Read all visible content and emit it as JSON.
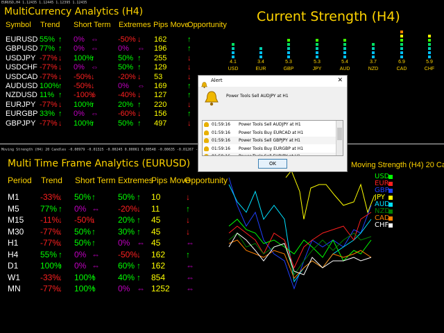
{
  "top_info": "EURUSD,H4  1.12435  1.12445  1.12395  1.12435",
  "mc": {
    "title": "MultiCurrency Analytics (H4)",
    "headers": [
      "Symbol",
      "Trend",
      "Short Term",
      "Extremes",
      "Pips Move",
      "Opportunity"
    ],
    "rows": [
      {
        "symbol": "EURUSD",
        "trend": "55%",
        "trend_arrow": "↑",
        "short": "0%",
        "short_arrow": "⇔",
        "ext": "-50%",
        "ext_arrow": "↓",
        "pips": "162",
        "opp": "↑",
        "c": [
          "g",
          "g",
          "m",
          "m",
          "r",
          "r",
          "y",
          "g"
        ]
      },
      {
        "symbol": "GBPUSD",
        "trend": "77%",
        "trend_arrow": "↑",
        "short": "0%",
        "short_arrow": "⇔",
        "ext": "0%",
        "ext_arrow": "⇔",
        "pips": "196",
        "opp": "↑",
        "c": [
          "g",
          "g",
          "m",
          "m",
          "m",
          "m",
          "y",
          "g"
        ]
      },
      {
        "symbol": "USDJPY",
        "trend": "-77%",
        "trend_arrow": "↓",
        "short": "100%",
        "short_arrow": "↑",
        "ext": "50%",
        "ext_arrow": "↑",
        "pips": "255",
        "opp": "↓",
        "c": [
          "r",
          "r",
          "g",
          "g",
          "g",
          "g",
          "y",
          "r"
        ]
      },
      {
        "symbol": "USDCHF",
        "trend": "-77%",
        "trend_arrow": "↓",
        "short": "0%",
        "short_arrow": "⇔",
        "ext": "50%",
        "ext_arrow": "↑",
        "pips": "129",
        "opp": "↓",
        "c": [
          "r",
          "r",
          "m",
          "m",
          "g",
          "g",
          "y",
          "r"
        ]
      },
      {
        "symbol": "USDCAD",
        "trend": "-77%",
        "trend_arrow": "↓",
        "short": "-50%",
        "short_arrow": "↓",
        "ext": "-20%",
        "ext_arrow": "↓",
        "pips": "53",
        "opp": "↓",
        "c": [
          "r",
          "r",
          "r",
          "r",
          "r",
          "r",
          "y",
          "r"
        ]
      },
      {
        "symbol": "AUDUSD",
        "trend": "100%",
        "trend_arrow": "↑",
        "short": "-50%",
        "short_arrow": "↓",
        "ext": "0%",
        "ext_arrow": "⇔",
        "pips": "169",
        "opp": "↑",
        "c": [
          "g",
          "g",
          "r",
          "r",
          "m",
          "m",
          "y",
          "g"
        ]
      },
      {
        "symbol": "NZDUSD",
        "trend": "11%",
        "trend_arrow": "↑",
        "short": "-100%",
        "short_arrow": "↓",
        "ext": "-40%",
        "ext_arrow": "↓",
        "pips": "127",
        "opp": "↑",
        "c": [
          "g",
          "g",
          "r",
          "r",
          "r",
          "r",
          "y",
          "g"
        ]
      },
      {
        "symbol": "EURJPY",
        "trend": "-77%",
        "trend_arrow": "↓",
        "short": "100%",
        "short_arrow": "↑",
        "ext": "20%",
        "ext_arrow": "↑",
        "pips": "220",
        "opp": "↓",
        "c": [
          "r",
          "r",
          "g",
          "g",
          "g",
          "g",
          "y",
          "r"
        ]
      },
      {
        "symbol": "EURGBP",
        "trend": "33%",
        "trend_arrow": "↑",
        "short": "0%",
        "short_arrow": "⇔",
        "ext": "-60%",
        "ext_arrow": "↓",
        "pips": "156",
        "opp": "↑",
        "c": [
          "g",
          "g",
          "m",
          "m",
          "r",
          "r",
          "y",
          "g"
        ]
      },
      {
        "symbol": "GBPJPY",
        "trend": "-77%",
        "trend_arrow": "↓",
        "short": "100%",
        "short_arrow": "↑",
        "ext": "50%",
        "ext_arrow": "↑",
        "pips": "497",
        "opp": "↓",
        "c": [
          "r",
          "r",
          "g",
          "g",
          "g",
          "g",
          "y",
          "r"
        ]
      }
    ]
  },
  "strength": {
    "title": "Current Strength (H4)",
    "items": [
      {
        "ccy": "USD",
        "val": "4.1",
        "lit": 4
      },
      {
        "ccy": "EUR",
        "val": "3.4",
        "lit": 3
      },
      {
        "ccy": "GBP",
        "val": "5.3",
        "lit": 5
      },
      {
        "ccy": "JPY",
        "val": "5.3",
        "lit": 5
      },
      {
        "ccy": "AUD",
        "val": "5.4",
        "lit": 5
      },
      {
        "ccy": "NZD",
        "val": "3.7",
        "lit": 4
      },
      {
        "ccy": "CAD",
        "val": "6.9",
        "lit": 7
      },
      {
        "ccy": "CHF",
        "val": "5.9",
        "lit": 6
      }
    ],
    "bar_colors": [
      "#00c0ff",
      "#00c0ff",
      "#00d0b0",
      "#00e060",
      "#40ff00",
      "#ffff00",
      "#ff8000",
      "#ff2020"
    ]
  },
  "ms_info": "Moving Strength (H4) 20 Candles -0.00979 -0.01325 -0.00245 0.00061 0.00548 -0.00635 -0.01267 -0.01445",
  "mtf": {
    "title": "Multi Time Frame Analytics (EURUSD)",
    "headers": [
      "Period",
      "Trend",
      "Short Term",
      "Extremes",
      "Pips Move",
      "Opportunity"
    ],
    "rows": [
      {
        "period": "M1",
        "trend": "-33%",
        "trend_arrow": "↓",
        "short": "50%",
        "short_arrow": "↑",
        "ext": "50%",
        "ext_arrow": "↑",
        "pips": "10",
        "opp": "↓",
        "c": [
          "r",
          "r",
          "g",
          "g",
          "g",
          "g",
          "y",
          "r"
        ]
      },
      {
        "period": "M5",
        "trend": "77%",
        "trend_arrow": "↑",
        "short": "0%",
        "short_arrow": "⇔",
        "ext": "-20%",
        "ext_arrow": "↓",
        "pips": "11",
        "opp": "↑",
        "c": [
          "g",
          "g",
          "m",
          "m",
          "r",
          "r",
          "y",
          "g"
        ]
      },
      {
        "period": "M15",
        "trend": "-11%",
        "trend_arrow": "↓",
        "short": "-50%",
        "short_arrow": "↓",
        "ext": "20%",
        "ext_arrow": "↑",
        "pips": "45",
        "opp": "↓",
        "c": [
          "r",
          "r",
          "r",
          "r",
          "g",
          "g",
          "y",
          "r"
        ]
      },
      {
        "period": "M30",
        "trend": "-77%",
        "trend_arrow": "↓",
        "short": "50%",
        "short_arrow": "↑",
        "ext": "30%",
        "ext_arrow": "↑",
        "pips": "45",
        "opp": "↓",
        "c": [
          "r",
          "r",
          "g",
          "g",
          "g",
          "g",
          "y",
          "r"
        ]
      },
      {
        "period": "H1",
        "trend": "-77%",
        "trend_arrow": "↓",
        "short": "50%",
        "short_arrow": "↑",
        "ext": "0%",
        "ext_arrow": "⇔",
        "pips": "45",
        "opp": "⇔",
        "c": [
          "r",
          "r",
          "g",
          "g",
          "m",
          "m",
          "y",
          "m"
        ]
      },
      {
        "period": "H4",
        "trend": "55%",
        "trend_arrow": "↑",
        "short": "0%",
        "short_arrow": "⇔",
        "ext": "-50%",
        "ext_arrow": "↓",
        "pips": "162",
        "opp": "↑",
        "c": [
          "g",
          "g",
          "m",
          "m",
          "r",
          "r",
          "y",
          "g"
        ]
      },
      {
        "period": "D1",
        "trend": "100%",
        "trend_arrow": "↑",
        "short": "0%",
        "short_arrow": "⇔",
        "ext": "60%",
        "ext_arrow": "↑",
        "pips": "162",
        "opp": "⇔",
        "c": [
          "g",
          "g",
          "m",
          "m",
          "g",
          "g",
          "y",
          "m"
        ]
      },
      {
        "period": "W1",
        "trend": "-33%",
        "trend_arrow": "↓",
        "short": "100%",
        "short_arrow": "↑",
        "ext": "40%",
        "ext_arrow": "↑",
        "pips": "854",
        "opp": "⇔",
        "c": [
          "r",
          "r",
          "g",
          "g",
          "g",
          "g",
          "y",
          "m"
        ]
      },
      {
        "period": "MN",
        "trend": "-77%",
        "trend_arrow": "↓",
        "short": "100%",
        "short_arrow": "↑",
        "ext": "0%",
        "ext_arrow": "⇔",
        "pips": "1252",
        "opp": "⇔",
        "c": [
          "r",
          "r",
          "g",
          "g",
          "m",
          "m",
          "y",
          "m"
        ]
      }
    ]
  },
  "moving_strength": {
    "title": "Moving Strength (H4) 20 Candles",
    "legend": [
      {
        "ccy": "USD",
        "color": "#00ff00"
      },
      {
        "ccy": "EUR",
        "color": "#ff2020"
      },
      {
        "ccy": "GBP",
        "color": "#2040ff"
      },
      {
        "ccy": "JPY",
        "color": "#ffff00"
      },
      {
        "ccy": "AUD",
        "color": "#00e0ff"
      },
      {
        "ccy": "NZD",
        "color": "#008000"
      },
      {
        "ccy": "CAD",
        "color": "#ff8000"
      },
      {
        "ccy": "CHF",
        "color": "#ffffff"
      }
    ]
  },
  "alert": {
    "title": "Alert",
    "close": "✕",
    "message": "Power Tools Sell AUDJPY at H1",
    "rows": [
      {
        "time": "01:59:16",
        "text": "Power Tools Sell AUDJPY at H1"
      },
      {
        "time": "01:59:16",
        "text": "Power Tools Buy EURCAD at H1"
      },
      {
        "time": "01:59:16",
        "text": "Power Tools Sell GBPJPY at H1"
      },
      {
        "time": "01:59:16",
        "text": "Power Tools Buy EURGBP at H1"
      },
      {
        "time": "01:59:16",
        "text": "Power Tools Sell EURJPY at H1"
      }
    ],
    "ok": "OK"
  }
}
